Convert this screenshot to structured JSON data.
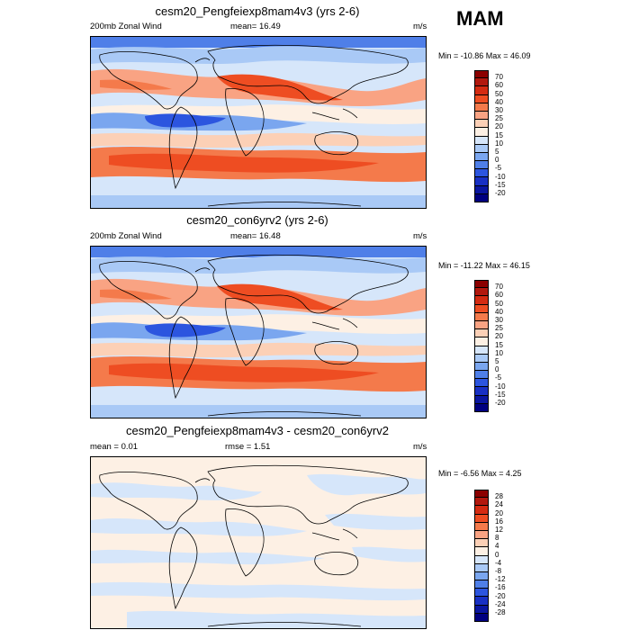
{
  "season": "MAM",
  "panels": [
    {
      "title": "cesm20_Pengfeiexp8mam4v3 (yrs 2-6)",
      "left_label": "200mb Zonal Wind",
      "center_label": "mean=  16.49",
      "units": "m/s",
      "min_max": "Min = -10.86 Max =  46.09",
      "colorbar": {
        "labels": [
          "70",
          "60",
          "50",
          "40",
          "30",
          "25",
          "20",
          "15",
          "10",
          "5",
          "0",
          "-5",
          "-10",
          "-15",
          "-20"
        ],
        "colors": [
          "#8b0000",
          "#b2180e",
          "#d42b12",
          "#ee4d22",
          "#f47a4b",
          "#f9a383",
          "#fcd0b6",
          "#fdf0e4",
          "#d6e6fa",
          "#a9c9f6",
          "#7aa6ef",
          "#4f7fe8",
          "#2c55df",
          "#1830c4",
          "#0a16a0",
          "#000080"
        ]
      },
      "map_kind": "wind"
    },
    {
      "title": "cesm20_con6yrv2 (yrs 2-6)",
      "left_label": "200mb Zonal Wind",
      "center_label": "mean=  16.48",
      "units": "m/s",
      "min_max": "Min = -11.22 Max =  46.15",
      "colorbar": {
        "labels": [
          "70",
          "60",
          "50",
          "40",
          "30",
          "25",
          "20",
          "15",
          "10",
          "5",
          "0",
          "-5",
          "-10",
          "-15",
          "-20"
        ],
        "colors": [
          "#8b0000",
          "#b2180e",
          "#d42b12",
          "#ee4d22",
          "#f47a4b",
          "#f9a383",
          "#fcd0b6",
          "#fdf0e4",
          "#d6e6fa",
          "#a9c9f6",
          "#7aa6ef",
          "#4f7fe8",
          "#2c55df",
          "#1830c4",
          "#0a16a0",
          "#000080"
        ]
      },
      "map_kind": "wind"
    },
    {
      "title": "cesm20_Pengfeiexp8mam4v3 - cesm20_con6yrv2",
      "left_label": "mean =  0.01",
      "center_label": "rmse =  1.51",
      "units": "m/s",
      "min_max": "Min = -6.56 Max =  4.25",
      "colorbar": {
        "labels": [
          "28",
          "24",
          "20",
          "16",
          "12",
          "8",
          "4",
          "0",
          "-4",
          "-8",
          "-12",
          "-16",
          "-20",
          "-24",
          "-28"
        ],
        "colors": [
          "#8b0000",
          "#b2180e",
          "#d42b12",
          "#ee4d22",
          "#f47a4b",
          "#f9a383",
          "#fcd0b6",
          "#fdf0e4",
          "#d6e6fa",
          "#a9c9f6",
          "#7aa6ef",
          "#4f7fe8",
          "#2c55df",
          "#1830c4",
          "#0a16a0",
          "#000080"
        ]
      },
      "map_kind": "diff"
    }
  ]
}
